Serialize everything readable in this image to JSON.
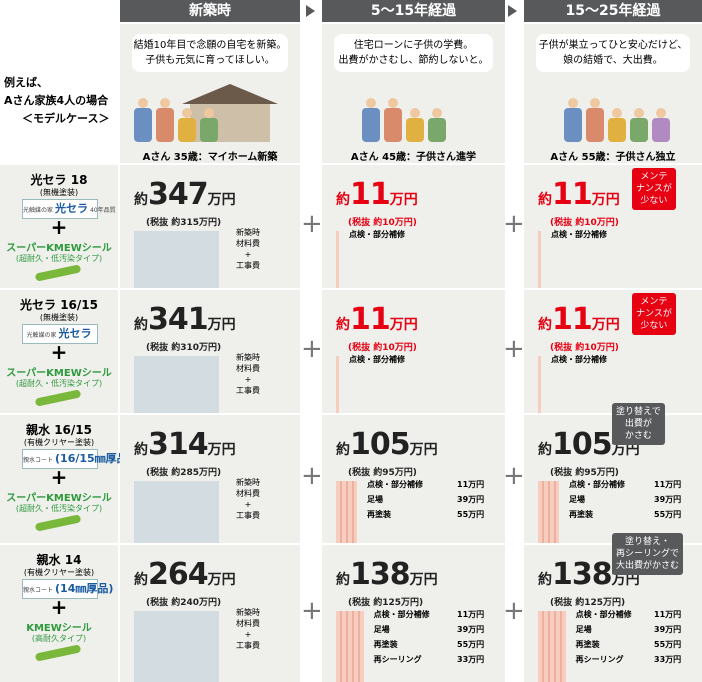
{
  "plus": "+",
  "header": {
    "columns": [
      "新築時",
      "5〜15年経過",
      "15〜25年経過"
    ]
  },
  "intro": {
    "lines": [
      "例えば、",
      "Aさん家族4人の場合",
      "＜モデルケース＞"
    ]
  },
  "scenes": [
    {
      "bubble": [
        "結婚10年目で念願の自宅を新築。",
        "子供も元気に育ってほしい。"
      ],
      "caption": "Aさん 35歳：マイホーム新築"
    },
    {
      "bubble": [
        "住宅ローンに子供の学費。",
        "出費がかさむし、節約しないと。"
      ],
      "caption": "Aさん 45歳：子供さん進学"
    },
    {
      "bubble": [
        "子供が巣立ってひと安心だけど、",
        "娘の結婚で、大出費。"
      ],
      "caption": "Aさん 55歳：子供さん独立"
    }
  ],
  "rows": [
    {
      "product": "光セラ 18",
      "product_note": "(無機塗装)",
      "logo": [
        "光触媒の家",
        "光セラ",
        "40年品質"
      ],
      "seal": "スーパーKMEWシール",
      "seal_note": "(超耐久・低汚染タイプ)",
      "cells": [
        {
          "prefix": "約",
          "amount": 347,
          "unit": "万円",
          "net": "(税抜 約315万円)",
          "items": [
            "新築時",
            "材料費",
            "+",
            "工事費"
          ]
        },
        {
          "prefix": "約",
          "amount": 11,
          "unit": "万円",
          "net": "(税抜 約10万円)",
          "color": "#e60012",
          "items": [
            {
              "label": "点検・部分補修"
            }
          ]
        },
        {
          "prefix": "約",
          "amount": 11,
          "unit": "万円",
          "net": "(税抜 約10万円)",
          "color": "#e60012",
          "items": [
            {
              "label": "点検・部分補修"
            }
          ],
          "badge": {
            "lines": [
              "メンテ",
              "ナンスが",
              "少ない"
            ],
            "color": "#e60012"
          }
        }
      ]
    },
    {
      "product": "光セラ 16/15",
      "product_note": "(無機塗装)",
      "logo": [
        "光触媒の家",
        "光セラ"
      ],
      "seal": "スーパーKMEWシール",
      "seal_note": "(超耐久・低汚染タイプ)",
      "cells": [
        {
          "prefix": "約",
          "amount": 341,
          "unit": "万円",
          "net": "(税抜 約310万円)",
          "items": [
            "新築時",
            "材料費",
            "+",
            "工事費"
          ]
        },
        {
          "prefix": "約",
          "amount": 11,
          "unit": "万円",
          "net": "(税抜 約10万円)",
          "color": "#e60012",
          "items": [
            {
              "label": "点検・部分補修"
            }
          ]
        },
        {
          "prefix": "約",
          "amount": 11,
          "unit": "万円",
          "net": "(税抜 約10万円)",
          "color": "#e60012",
          "items": [
            {
              "label": "点検・部分補修"
            }
          ],
          "badge": {
            "lines": [
              "メンテ",
              "ナンスが",
              "少ない"
            ],
            "color": "#e60012"
          }
        }
      ]
    },
    {
      "product": "親水 16/15",
      "product_note": "(有機クリヤー塗装)",
      "logo": [
        "親水コート",
        "(16/15㎜厚品)"
      ],
      "seal": "スーパーKMEWシール",
      "seal_note": "(超耐久・低汚染タイプ)",
      "cells": [
        {
          "prefix": "約",
          "amount": 314,
          "unit": "万円",
          "net": "(税抜 約285万円)",
          "items": [
            "新築時",
            "材料費",
            "+",
            "工事費"
          ]
        },
        {
          "prefix": "約",
          "amount": 105,
          "unit": "万円",
          "net": "(税抜 約95万円)",
          "items": [
            {
              "label": "点検・部分補修",
              "cost": "11万円"
            },
            {
              "label": "足場",
              "cost": "39万円"
            },
            {
              "label": "再塗装",
              "cost": "55万円"
            }
          ]
        },
        {
          "prefix": "約",
          "amount": 105,
          "unit": "万円",
          "net": "(税抜 約95万円)",
          "items": [
            {
              "label": "点検・部分補修",
              "cost": "11万円"
            },
            {
              "label": "足場",
              "cost": "39万円"
            },
            {
              "label": "再塗装",
              "cost": "55万円"
            }
          ],
          "badge": {
            "lines": [
              "塗り替えで",
              "出費が",
              "かさむ"
            ],
            "color": "#58595b"
          }
        }
      ]
    },
    {
      "product": "親水 14",
      "product_note": "(有機クリヤー塗装)",
      "logo": [
        "親水コート",
        "(14㎜厚品)"
      ],
      "seal": "KMEWシール",
      "seal_note": "(高耐久タイプ)",
      "cells": [
        {
          "prefix": "約",
          "amount": 264,
          "unit": "万円",
          "net": "(税抜 約240万円)",
          "items": [
            "新築時",
            "材料費",
            "+",
            "工事費"
          ]
        },
        {
          "prefix": "約",
          "amount": 138,
          "unit": "万円",
          "net": "(税抜 約125万円)",
          "items": [
            {
              "label": "点検・部分補修",
              "cost": "11万円"
            },
            {
              "label": "足場",
              "cost": "39万円"
            },
            {
              "label": "再塗装",
              "cost": "55万円"
            },
            {
              "label": "再シーリング",
              "cost": "33万円"
            }
          ]
        },
        {
          "prefix": "約",
          "amount": 138,
          "unit": "万円",
          "net": "(税抜 約125万円)",
          "items": [
            {
              "label": "点検・部分補修",
              "cost": "11万円"
            },
            {
              "label": "足場",
              "cost": "39万円"
            },
            {
              "label": "再塗装",
              "cost": "55万円"
            },
            {
              "label": "再シーリング",
              "cost": "33万円"
            }
          ],
          "badge": {
            "lines": [
              "塗り替え・",
              "再シーリングで",
              "大出費がかさむ"
            ],
            "color": "#58595b"
          }
        }
      ]
    }
  ]
}
